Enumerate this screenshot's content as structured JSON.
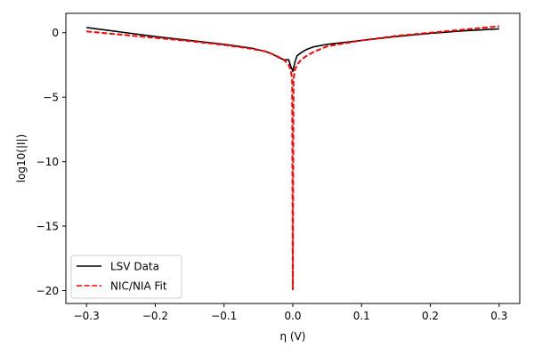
{
  "chart_data": {
    "type": "line",
    "xlabel": "η (V)",
    "ylabel": "log10(|I|)",
    "xlim": [
      -0.33,
      0.33
    ],
    "ylim": [
      -21,
      1.5
    ],
    "x_ticks": [
      -0.3,
      -0.2,
      -0.1,
      0.0,
      0.1,
      0.2,
      0.3
    ],
    "x_tick_labels": [
      "−0.3",
      "−0.2",
      "−0.1",
      "0.0",
      "0.1",
      "0.2",
      "0.3"
    ],
    "y_ticks": [
      0,
      -5,
      -10,
      -15,
      -20
    ],
    "y_tick_labels": [
      "0",
      "−5",
      "−10",
      "−15",
      "−20"
    ],
    "grid": false,
    "legend_position": "lower-left",
    "series": [
      {
        "name": "LSV Data",
        "color": "#000000",
        "style": "solid",
        "x": [
          -0.3,
          -0.25,
          -0.2,
          -0.15,
          -0.1,
          -0.06,
          -0.04,
          -0.03,
          -0.02,
          -0.012,
          -0.006,
          -0.003,
          0.0,
          0.003,
          0.006,
          0.012,
          0.02,
          0.03,
          0.05,
          0.1,
          0.15,
          0.2,
          0.25,
          0.3
        ],
        "y": [
          0.4,
          0.05,
          -0.3,
          -0.6,
          -0.9,
          -1.2,
          -1.45,
          -1.65,
          -1.95,
          -2.1,
          -2.1,
          -2.6,
          -3.0,
          -2.3,
          -1.8,
          -1.55,
          -1.3,
          -1.1,
          -0.9,
          -0.6,
          -0.3,
          -0.05,
          0.15,
          0.3
        ]
      },
      {
        "name": "NIC/NIA Fit",
        "color": "#ff0000",
        "style": "dashed",
        "x": [
          -0.3,
          -0.25,
          -0.2,
          -0.15,
          -0.1,
          -0.06,
          -0.04,
          -0.03,
          -0.02,
          -0.012,
          -0.006,
          -0.003,
          -0.001,
          0.0,
          0.001,
          0.003,
          0.006,
          0.012,
          0.02,
          0.03,
          0.05,
          0.1,
          0.15,
          0.2,
          0.25,
          0.3
        ],
        "y": [
          0.1,
          -0.15,
          -0.4,
          -0.65,
          -0.95,
          -1.25,
          -1.45,
          -1.65,
          -1.9,
          -2.15,
          -2.5,
          -2.9,
          -3.6,
          -19.9,
          -3.6,
          -2.9,
          -2.5,
          -2.1,
          -1.8,
          -1.5,
          -1.05,
          -0.6,
          -0.25,
          0.0,
          0.25,
          0.5
        ]
      }
    ]
  }
}
